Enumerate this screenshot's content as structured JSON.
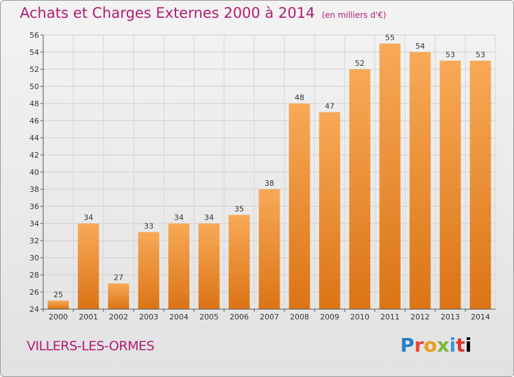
{
  "header": {
    "title": "Achats et Charges Externes 2000 à 2014",
    "unit": "(en milliers d'€)"
  },
  "footer": {
    "place": "VILLERS-LES-ORMES",
    "logo": [
      "P",
      "r",
      "o",
      "x",
      "i",
      "t",
      "i"
    ]
  },
  "chart_data": {
    "type": "bar",
    "title": "Achats et Charges Externes 2000 à 2014",
    "subtitle": "(en milliers d'€)",
    "xlabel": "",
    "ylabel": "",
    "categories": [
      "2000",
      "2001",
      "2002",
      "2003",
      "2004",
      "2005",
      "2006",
      "2007",
      "2008",
      "2009",
      "2010",
      "2011",
      "2012",
      "2013",
      "2014"
    ],
    "values": [
      25,
      34,
      27,
      33,
      34,
      34,
      35,
      38,
      48,
      47,
      52,
      55,
      54,
      53,
      53
    ],
    "ylim": [
      24,
      56
    ],
    "yticks": [
      24,
      26,
      28,
      30,
      32,
      34,
      36,
      38,
      40,
      42,
      44,
      46,
      48,
      50,
      52,
      54,
      56
    ],
    "grid": true,
    "bar_color_top": "#f8a957",
    "bar_color_bottom": "#db7415"
  }
}
